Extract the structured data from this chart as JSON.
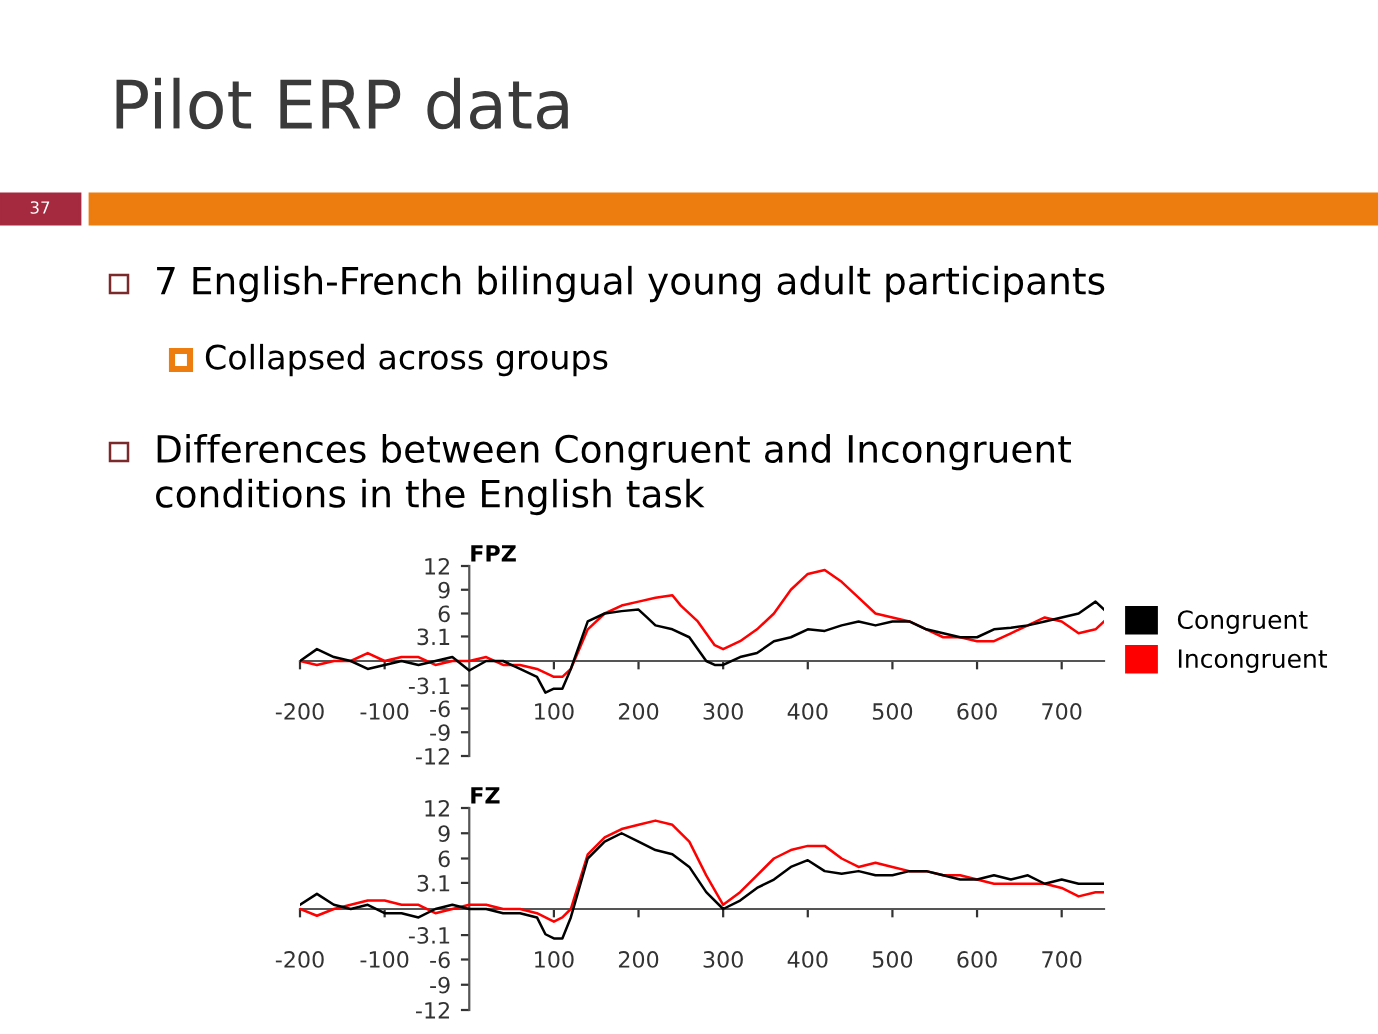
{
  "chart_data": [
    {
      "type": "line",
      "title": "FPZ",
      "xlim": [
        -200,
        750
      ],
      "xticks": [
        -200,
        -100,
        100,
        200,
        300,
        400,
        500,
        600,
        700
      ],
      "ylim": [
        -12,
        12
      ],
      "yticks": [
        -12,
        -9,
        -6,
        -3.1,
        3.1,
        6,
        9,
        12
      ],
      "grid": false,
      "legend": "right",
      "marker": "none",
      "line_style": "solid",
      "annotations": [
        "Pilot ERP data",
        "37",
        "7 English-French bilingual young adult participants",
        "Collapsed across groups",
        "Differences between Congruent and Incongruent conditions in the English task"
      ],
      "series": [
        {
          "name": "Congruent",
          "color": "#000000",
          "x": [
            -200,
            -180,
            -160,
            -140,
            -120,
            -100,
            -80,
            -60,
            -40,
            -20,
            0,
            20,
            40,
            60,
            80,
            90,
            100,
            110,
            120,
            130,
            140,
            160,
            180,
            200,
            210,
            220,
            240,
            260,
            280,
            290,
            300,
            320,
            340,
            360,
            380,
            400,
            420,
            440,
            460,
            480,
            500,
            520,
            540,
            560,
            580,
            600,
            620,
            640,
            660,
            680,
            700,
            720,
            740,
            750
          ],
          "values": [
            0,
            1.5,
            0.5,
            0,
            -1,
            -0.5,
            0,
            -0.5,
            0,
            0.5,
            -1.2,
            0,
            0,
            -1,
            -2,
            -4,
            -3.5,
            -3.5,
            -1,
            2,
            5,
            6,
            6.3,
            6.5,
            5.5,
            4.5,
            4,
            3,
            0,
            -0.5,
            -0.5,
            0.5,
            1,
            2.5,
            3,
            4,
            3.8,
            4.5,
            5,
            4.5,
            5,
            5,
            4,
            3.5,
            3,
            3,
            4,
            4.2,
            4.5,
            5,
            5.5,
            6,
            7.5,
            6.5
          ]
        },
        {
          "name": "Incongruent",
          "color": "#ff0000",
          "x": [
            -200,
            -180,
            -160,
            -140,
            -120,
            -100,
            -80,
            -60,
            -40,
            -20,
            0,
            20,
            40,
            60,
            80,
            100,
            110,
            120,
            140,
            160,
            180,
            200,
            220,
            240,
            250,
            270,
            290,
            300,
            320,
            340,
            360,
            380,
            400,
            420,
            440,
            460,
            480,
            500,
            520,
            540,
            560,
            580,
            600,
            620,
            640,
            660,
            680,
            700,
            720,
            740,
            750
          ],
          "values": [
            0,
            -0.5,
            0,
            0,
            1,
            0,
            0.5,
            0.5,
            -0.5,
            0,
            0,
            0.5,
            -0.5,
            -0.5,
            -1,
            -2,
            -2,
            -1,
            4,
            6,
            7,
            7.5,
            8,
            8.3,
            7,
            5,
            2,
            1.5,
            2.5,
            4,
            6,
            9,
            11,
            11.5,
            10,
            8,
            6,
            5.5,
            5,
            4,
            3,
            3,
            2.5,
            2.5,
            3.5,
            4.5,
            5.5,
            5,
            3.5,
            4,
            5
          ]
        }
      ]
    },
    {
      "type": "line",
      "title": "FZ",
      "xlim": [
        -200,
        750
      ],
      "xticks": [
        -200,
        -100,
        100,
        200,
        300,
        400,
        500,
        600,
        700
      ],
      "ylim": [
        -12,
        12
      ],
      "yticks": [
        -12,
        -9,
        -6,
        -3.1,
        3.1,
        6,
        9,
        12
      ],
      "grid": false,
      "marker": "none",
      "line_style": "solid",
      "series": [
        {
          "color": "#000000",
          "x": [
            -200,
            -180,
            -160,
            -140,
            -120,
            -100,
            -80,
            -60,
            -40,
            -20,
            0,
            20,
            40,
            60,
            80,
            90,
            100,
            110,
            120,
            140,
            160,
            180,
            200,
            220,
            240,
            260,
            280,
            300,
            320,
            340,
            360,
            380,
            400,
            420,
            440,
            460,
            480,
            500,
            520,
            540,
            560,
            580,
            600,
            620,
            640,
            660,
            680,
            700,
            720,
            740,
            750
          ],
          "values": [
            0.5,
            1.8,
            0.5,
            0,
            0.5,
            -0.5,
            -0.5,
            -1,
            0,
            0.5,
            0,
            0,
            -0.5,
            -0.5,
            -1,
            -3,
            -3.5,
            -3.5,
            -1,
            6,
            8,
            9,
            8,
            7,
            6.5,
            5,
            2,
            0,
            1,
            2.5,
            3.5,
            5,
            5.8,
            4.5,
            4.2,
            4.5,
            4,
            4,
            4.5,
            4.5,
            4,
            3.5,
            3.5,
            4,
            3.5,
            4,
            3,
            3.5,
            3,
            3,
            3
          ]
        },
        {
          "color": "#ff0000",
          "x": [
            -200,
            -180,
            -160,
            -140,
            -120,
            -100,
            -80,
            -60,
            -40,
            -20,
            0,
            20,
            40,
            60,
            80,
            100,
            110,
            120,
            140,
            160,
            180,
            200,
            220,
            240,
            260,
            280,
            300,
            320,
            340,
            360,
            380,
            400,
            420,
            440,
            460,
            480,
            500,
            520,
            540,
            560,
            580,
            600,
            620,
            640,
            660,
            680,
            700,
            720,
            740,
            750
          ],
          "values": [
            0,
            -0.8,
            0,
            0.5,
            1,
            1,
            0.5,
            0.5,
            -0.5,
            0,
            0.5,
            0.5,
            0,
            0,
            -0.5,
            -1.5,
            -1,
            0,
            6.5,
            8.5,
            9.5,
            10,
            10.5,
            10,
            8,
            4,
            0.5,
            2,
            4,
            6,
            7,
            7.5,
            7.5,
            6,
            5,
            5.5,
            5,
            4.5,
            4.5,
            4,
            4,
            3.5,
            3,
            3,
            3,
            3,
            2.5,
            1.5,
            2,
            2
          ]
        }
      ]
    }
  ]
}
